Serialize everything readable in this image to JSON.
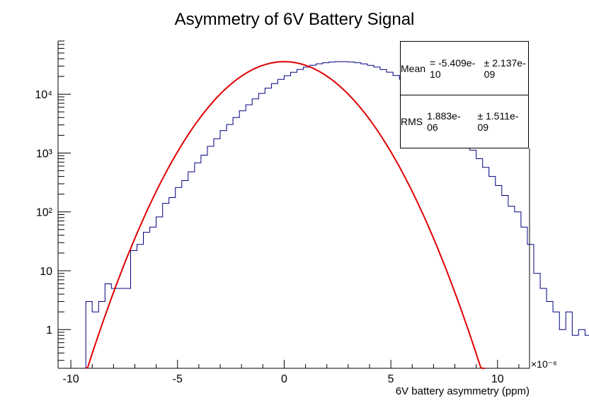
{
  "chart_data": {
    "type": "histogram",
    "title": "Asymmetry of 6V Battery Signal",
    "xlabel": "6V battery asymmetry (ppm)",
    "ylabel": "",
    "x_multiplier": "×10⁻⁶",
    "xlim": [
      -10.6,
      11.5
    ],
    "ylim": [
      0.22,
      80000
    ],
    "y_scale": "log",
    "x_ticks": [
      -10,
      -5,
      0,
      5,
      10
    ],
    "y_ticks": [
      {
        "value": 1,
        "label": "1"
      },
      {
        "value": 10,
        "label": "10"
      },
      {
        "value": 100,
        "label": "10²"
      },
      {
        "value": 1000,
        "label": "10³"
      },
      {
        "value": 10000,
        "label": "10⁴"
      }
    ],
    "histogram": {
      "color": "#000080",
      "bin_width": 0.3,
      "x_start": -9.3,
      "values": [
        3,
        2,
        3,
        6,
        5,
        5,
        5,
        22,
        28,
        45,
        55,
        82,
        140,
        175,
        260,
        340,
        480,
        680,
        920,
        1300,
        1750,
        2400,
        3050,
        4000,
        5200,
        6600,
        8300,
        10300,
        12600,
        15100,
        17800,
        20600,
        23500,
        26300,
        28800,
        31000,
        32800,
        34100,
        35100,
        35600,
        35600,
        35100,
        34100,
        32700,
        30900,
        28800,
        26200,
        23600,
        20800,
        17900,
        15100,
        12500,
        10100,
        8100,
        6400,
        4900,
        3800,
        2900,
        2150,
        1580,
        1120,
        800,
        570,
        400,
        280,
        190,
        125,
        100,
        55,
        28,
        9,
        5,
        3,
        2,
        1,
        2,
        0.8,
        1,
        0.8,
        2,
        1
      ]
    },
    "fit": {
      "type": "gaussian",
      "color": "#e00000",
      "amplitude": 35600,
      "mean": 0.0,
      "sigma": 1.883,
      "x_range": [
        -9.3,
        9.4
      ]
    },
    "stats": {
      "mean_label": "Mean",
      "mean_value": "= -5.409e-10",
      "mean_error": "± 2.137e-09",
      "rms_label": "RMS",
      "rms_value": "1.883e-06",
      "rms_error": "± 1.511e-09"
    }
  }
}
